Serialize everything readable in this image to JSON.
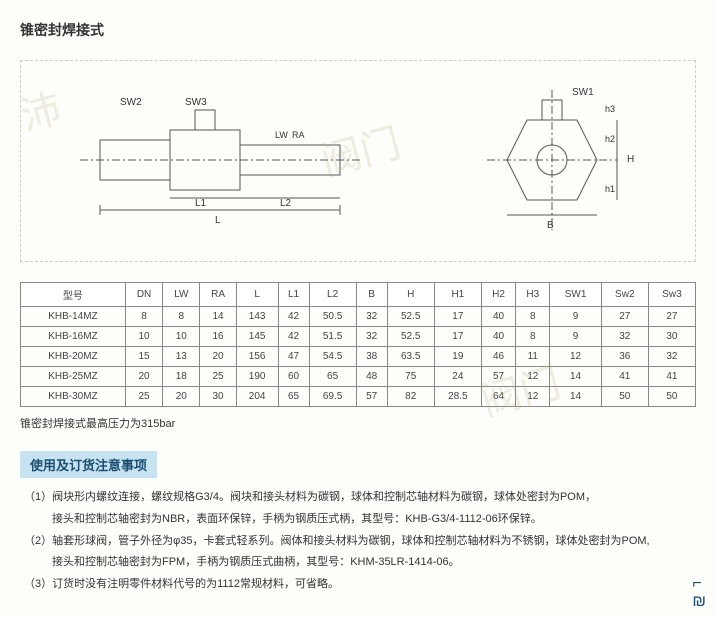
{
  "title": "锥密封焊接式",
  "diagram": {
    "left_labels": [
      "SW2",
      "SW3",
      "L",
      "L1",
      "L2",
      "LW",
      "RA"
    ],
    "right_labels": [
      "SW1",
      "B",
      "H",
      "h1",
      "h2",
      "h3"
    ]
  },
  "table": {
    "headers": [
      "型号",
      "DN",
      "LW",
      "RA",
      "L",
      "L1",
      "L2",
      "B",
      "H",
      "H1",
      "H2",
      "H3",
      "SW1",
      "Sw2",
      "Sw3"
    ],
    "rows": [
      [
        "KHB-14MZ",
        "8",
        "8",
        "14",
        "143",
        "42",
        "50.5",
        "32",
        "52.5",
        "17",
        "40",
        "8",
        "9",
        "27",
        "27"
      ],
      [
        "KHB-16MZ",
        "10",
        "10",
        "16",
        "145",
        "42",
        "51.5",
        "32",
        "52.5",
        "17",
        "40",
        "8",
        "9",
        "32",
        "30"
      ],
      [
        "KHB-20MZ",
        "15",
        "13",
        "20",
        "156",
        "47",
        "54.5",
        "38",
        "63.5",
        "19",
        "46",
        "11",
        "12",
        "36",
        "32"
      ],
      [
        "KHB-25MZ",
        "20",
        "18",
        "25",
        "190",
        "60",
        "65",
        "48",
        "75",
        "24",
        "57",
        "12",
        "14",
        "41",
        "41"
      ],
      [
        "KHB-30MZ",
        "25",
        "20",
        "30",
        "204",
        "65",
        "69.5",
        "57",
        "82",
        "28.5",
        "64",
        "12",
        "14",
        "50",
        "50"
      ]
    ]
  },
  "note_text": "锥密封焊接式最高压力为315bar",
  "section_header": "使用及订货注意事项",
  "info_items": [
    {
      "n": "（1）",
      "t": "阀块形内螺纹连接，螺纹规格G3/4。阀块和接头材料为碳钢，球体和控制芯轴材料为碳钢，球体处密封为POM，"
    },
    {
      "n": "",
      "t": "接头和控制芯轴密封为NBR，表面环保锌，手柄为钢质压式柄，其型号：KHB-G3/4-1112-06环保锌。",
      "sub": true
    },
    {
      "n": "（2）",
      "t": "轴套形球阀，管子外径为φ35，卡套式轻系列。阀体和接头材料为碳钢，球体和控制芯轴材料为不锈钢，球体处密封为POM,"
    },
    {
      "n": "",
      "t": "接头和控制芯轴密封为FPM，手柄为钢质压式曲柄，其型号：KHM-35LR-1414-06。",
      "sub": true
    },
    {
      "n": "（3）",
      "t": "订货时没有注明零件材料代号的为1112常规材料，可省略。"
    }
  ],
  "styles": {
    "header_bg": "#c7e2f0",
    "header_text": "#1b4f72",
    "border_color": "#888"
  }
}
